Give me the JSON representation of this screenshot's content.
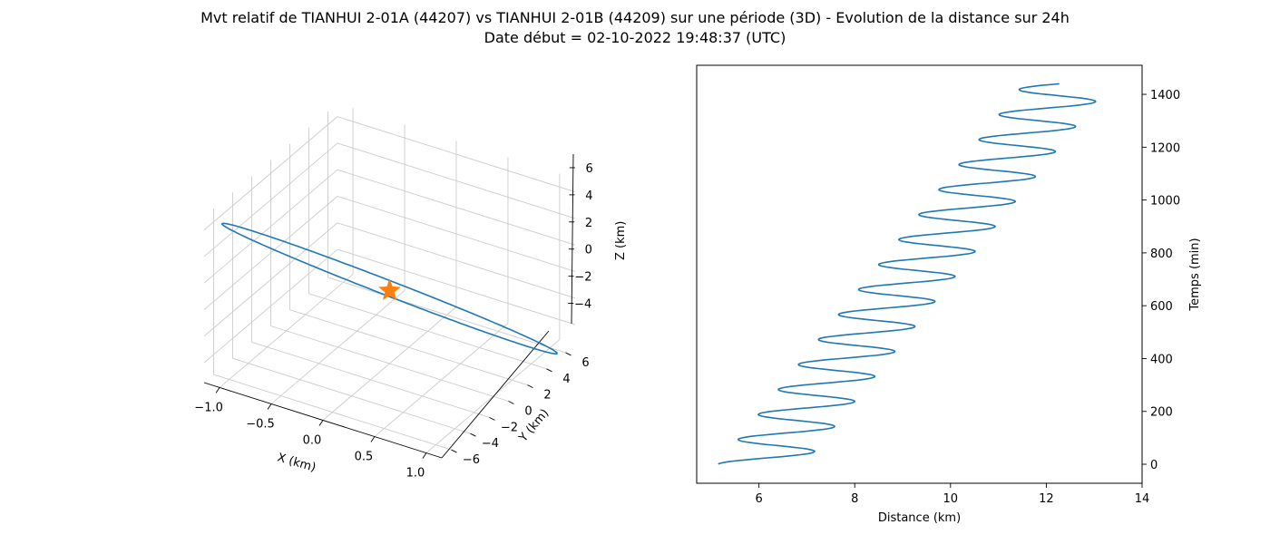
{
  "title": {
    "line1": "Mvt relatif de TIANHUI 2-01A (44207) vs TIANHUI 2-01B (44209) sur une période (3D) - Evolution de la distance sur 24h",
    "line2": "Date début = 02-10-2022 19:48:37 (UTC)"
  },
  "colors": {
    "series": "#1f77b4",
    "marker": "#ff7f0e",
    "grid": "#cccccc",
    "pane_back": "#f2f2f2",
    "pane_floor": "#f5f5f5",
    "pane_left": "#fafafa"
  },
  "chart_data": [
    {
      "type": "line3d",
      "xlabel": "X (km)",
      "ylabel": "Y (km)",
      "zlabel": "Z (km)",
      "xlim": [
        -1.15,
        1.15
      ],
      "ylim": [
        -7,
        7
      ],
      "zlim": [
        -5.5,
        7
      ],
      "x_ticks": [
        -1.0,
        -0.5,
        0.0,
        0.5,
        1.0
      ],
      "x_tick_labels": [
        "−1.0",
        "−0.5",
        "0.0",
        "0.5",
        "1.0"
      ],
      "y_ticks": [
        -6,
        -4,
        -2,
        0,
        2,
        4,
        6
      ],
      "y_tick_labels": [
        "−6",
        "−4",
        "−2",
        "0",
        "2",
        "4",
        "6"
      ],
      "z_ticks": [
        -4,
        -2,
        0,
        2,
        4,
        6
      ],
      "z_tick_labels": [
        "−4",
        "−2",
        "0",
        "2",
        "4",
        "6"
      ],
      "grid": true,
      "orbit": {
        "x_amplitude": 1.05,
        "y_amplitude": 6.2,
        "z_amplitude": 6.1,
        "x_offset": 0.0,
        "y_offset": 0.0,
        "z_offset": 0.15,
        "phase_z": 0.1
      },
      "marker": {
        "shape": "star",
        "x": 0,
        "y": 0,
        "z": 0
      }
    },
    {
      "type": "line",
      "xlabel": "Distance (km)",
      "ylabel": "Temps (min)",
      "xlim": [
        4.7,
        14.0
      ],
      "ylim": [
        -72,
        1510
      ],
      "x_ticks": [
        6,
        8,
        10,
        12,
        14
      ],
      "x_tick_labels": [
        "6",
        "8",
        "10",
        "12",
        "14"
      ],
      "y_ticks": [
        0,
        200,
        400,
        600,
        800,
        1000,
        1200,
        1400
      ],
      "y_tick_labels": [
        "0",
        "200",
        "400",
        "600",
        "800",
        "1000",
        "1200",
        "1400"
      ],
      "y_axis_side": "right",
      "grid": false,
      "series": [
        {
          "time_start": 0,
          "time_end": 1440,
          "distance_start": 5.15,
          "distance_slope_per_min": 0.00443,
          "oscillation_amplitude": 0.9,
          "oscillation_period_min": 94.6
        }
      ]
    }
  ]
}
